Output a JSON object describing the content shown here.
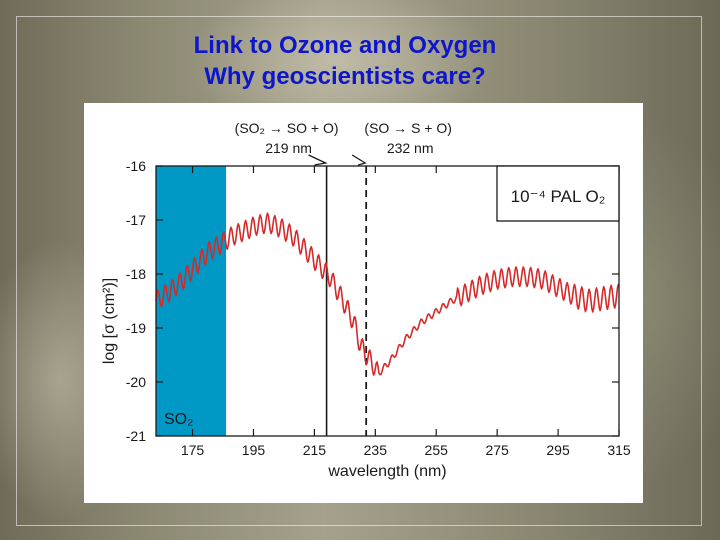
{
  "slide": {
    "title_line1": "Link to Ozone and Oxygen",
    "title_line2": "Why geoscientists care?"
  },
  "chart_data": {
    "type": "line",
    "xlabel": "wavelength (nm)",
    "ylabel": "log [σ (cm²)]",
    "xlim": [
      163,
      315
    ],
    "ylim": [
      -21,
      -16
    ],
    "xticks": [
      175,
      195,
      215,
      235,
      255,
      275,
      295,
      315
    ],
    "yticks": [
      -16,
      -17,
      -18,
      -19,
      -20,
      -21
    ],
    "x_tick_labels": [
      "175",
      "195",
      "215",
      "235",
      "255",
      "275",
      "295",
      "315"
    ],
    "y_tick_labels": [
      "-16",
      "-17",
      "-18",
      "-19",
      "-20",
      "-21"
    ],
    "legend_box": "10⁻⁴ PAL O₂",
    "legend_position": "top-right",
    "shaded_region": {
      "label": "SO₂",
      "x_start": 163,
      "x_end": 186,
      "color": "#0099c6"
    },
    "markers": [
      {
        "x": 219,
        "reaction": "(SO₂ → SO + O)",
        "wavelength_label": "219 nm",
        "style": "solid"
      },
      {
        "x": 232,
        "reaction": "(SO → S + O)",
        "wavelength_label": "232 nm",
        "style": "dashed"
      }
    ],
    "series": [
      {
        "color": "#d42a2a",
        "x": [
          163,
          168,
          172,
          176,
          180,
          184,
          188,
          192,
          196,
          200,
          204,
          208,
          212,
          216,
          220,
          224,
          228,
          230,
          232,
          234,
          236,
          240,
          245,
          250,
          255,
          260,
          265,
          270,
          275,
          280,
          285,
          290,
          295,
          300,
          305,
          310,
          315
        ],
        "y": [
          -18.5,
          -18.3,
          -18.1,
          -17.85,
          -17.6,
          -17.45,
          -17.3,
          -17.2,
          -17.1,
          -17.05,
          -17.15,
          -17.3,
          -17.55,
          -17.8,
          -18.05,
          -18.45,
          -18.9,
          -19.3,
          -19.5,
          -19.65,
          -19.85,
          -19.6,
          -19.2,
          -18.9,
          -18.7,
          -18.5,
          -18.35,
          -18.2,
          -18.1,
          -18.05,
          -18.05,
          -18.1,
          -18.25,
          -18.4,
          -18.5,
          -18.45,
          -18.4
        ],
        "oscillation_amplitude": 0.18,
        "oscillation_period_nm": 2.4
      }
    ]
  }
}
